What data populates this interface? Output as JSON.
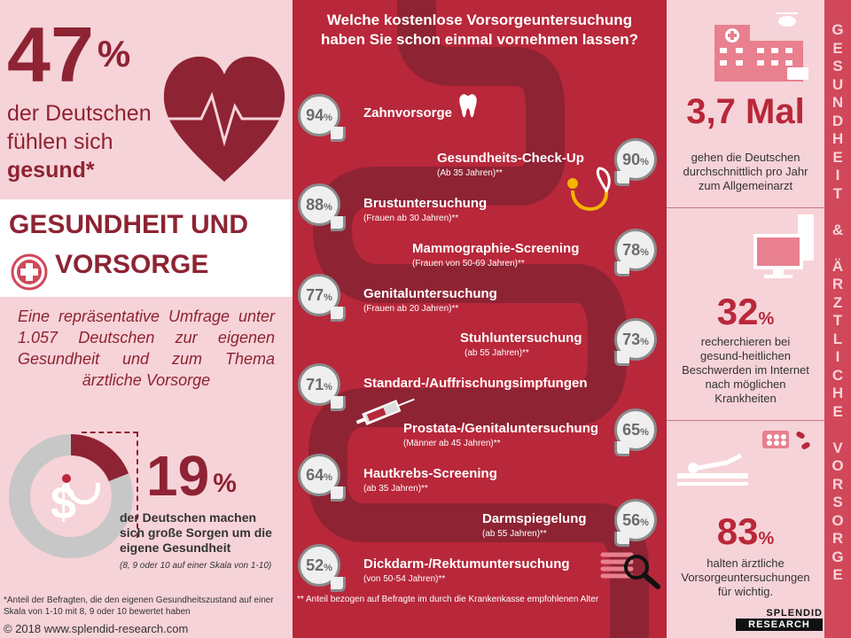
{
  "left": {
    "stat1": {
      "value": "47",
      "unit": "%",
      "line1": "der Deutschen",
      "line2": "fühlen sich",
      "line3": "gesund*"
    },
    "title": {
      "line1": "GESUNDHEIT UND",
      "line2": "VORSORGE"
    },
    "survey": "Eine repräsentative Umfrage unter 1.057 Deutschen zur eigenen Gesundheit und zum Thema ärztliche Vorsorge",
    "stat2": {
      "value": "19",
      "unit": "%",
      "line1": "der Deutschen machen",
      "line2": "sich große Sorgen um die",
      "line3": "eigene Gesundheit",
      "scale": "(8, 9 oder 10 auf einer Skala von 1-10)",
      "fraction": 0.19
    },
    "footnote": "*Anteil der Befragten, die den eigenen Gesundheitszustand auf einer Skala von 1-10 mit 8, 9 oder 10 bewertet haben",
    "copyright": "© 2018 www.splendid-research.com"
  },
  "middle": {
    "question_line1": "Welche kostenlose Vorsorgeuntersuchung",
    "question_line2": "haben Sie schon einmal vornehmen lassen?",
    "items": [
      {
        "value": "94",
        "unit": "%",
        "label": "Zahnvorsorge",
        "sub": ""
      },
      {
        "value": "90",
        "unit": "%",
        "label": "Gesundheits-Check-Up",
        "sub": "(Ab 35 Jahren)**"
      },
      {
        "value": "88",
        "unit": "%",
        "label": "Brustuntersuchung",
        "sub": "(Frauen ab 30 Jahren)**"
      },
      {
        "value": "78",
        "unit": "%",
        "label": "Mammographie-Screening",
        "sub": "(Frauen von 50-69 Jahren)**"
      },
      {
        "value": "77",
        "unit": "%",
        "label": "Genitaluntersuchung",
        "sub": "(Frauen ab 20 Jahren)**"
      },
      {
        "value": "73",
        "unit": "%",
        "label": "Stuhluntersuchung",
        "sub": "(ab 55 Jahren)**"
      },
      {
        "value": "71",
        "unit": "%",
        "label": "Standard-/Auffrischungsimpfungen",
        "sub": ""
      },
      {
        "value": "65",
        "unit": "%",
        "label": "Prostata-/Genitaluntersuchung",
        "sub": "(Männer ab 45 Jahren)**"
      },
      {
        "value": "64",
        "unit": "%",
        "label": "Hautkrebs-Screening",
        "sub": "(ab 35 Jahren)**"
      },
      {
        "value": "56",
        "unit": "%",
        "label": "Darmspiegelung",
        "sub": "(ab 55 Jahren)**"
      },
      {
        "value": "52",
        "unit": "%",
        "label": "Dickdarm-/Rektumuntersuchung",
        "sub": "(von 50-54 Jahren)**"
      }
    ],
    "note": "** Anteil bezogen auf Befragte im durch die Krankenkasse empfohlenen Alter"
  },
  "right": {
    "stat1": {
      "value": "3,7 Mal",
      "line1": "gehen die Deutschen",
      "line2": "durchschnittlich pro Jahr",
      "line3": "zum Allgemeinarzt"
    },
    "stat2": {
      "value": "32",
      "unit": "%",
      "line1": "recherchieren bei",
      "line2": "gesund-heitlichen",
      "line3": "Beschwerden im Internet",
      "line4": "nach möglichen",
      "line5": "Krankheiten"
    },
    "stat3": {
      "value": "83",
      "unit": "%",
      "line1": "halten ärztliche",
      "line2": "Vorsorgeuntersuchungen",
      "line3": "für wichtig."
    },
    "vertical": "GESUNDHEIT & ÄRZTLICHE VORSORGE",
    "logo_line1": "SPLENDID",
    "logo_line2": "RESEARCH"
  },
  "colors": {
    "primary": "#b9273a",
    "dark": "#8e2333",
    "pink": "#f6d3d8",
    "track": "#8e2333"
  },
  "icons": [
    "heart-icon",
    "medical-cross-icon",
    "tooth-icon",
    "stethoscope-icon",
    "syringe-icon",
    "magnifier-icon",
    "hospital-icon",
    "computer-icon",
    "pills-icon",
    "patient-bed-icon",
    "dollar-stethoscope-icon"
  ]
}
